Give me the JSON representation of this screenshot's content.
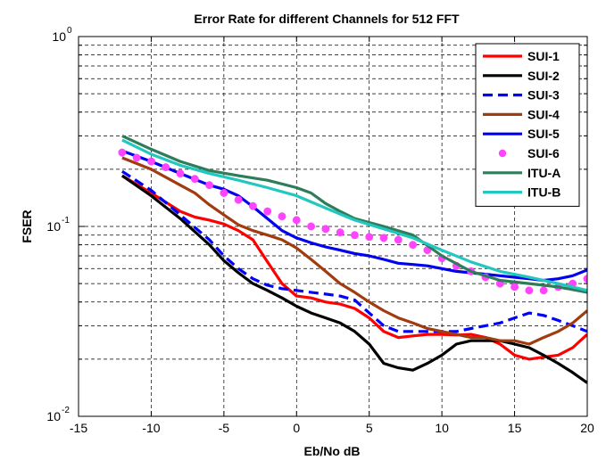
{
  "chart_data": {
    "type": "line",
    "title": "Error Rate for different Channels for 512 FFT",
    "xlabel": "Eb/No dB",
    "ylabel": "FSER",
    "xlim": [
      -15,
      20
    ],
    "ylim": [
      0.01,
      1
    ],
    "yscale": "log",
    "grid": true,
    "legend_position": "top-right",
    "x_ticks": [
      -15,
      -10,
      -5,
      0,
      5,
      10,
      15,
      20
    ],
    "x_tick_labels": [
      "-15",
      "-10",
      "-5",
      "0",
      "5",
      "10",
      "15",
      "20"
    ],
    "y_ticks": [
      {
        "value": 0.01,
        "base": "10",
        "exp": "-2"
      },
      {
        "value": 0.1,
        "base": "10",
        "exp": "-1"
      },
      {
        "value": 1,
        "base": "10",
        "exp": "0"
      }
    ],
    "series": [
      {
        "name": "SUI-1",
        "color": "#ff0000",
        "style": "solid",
        "x": [
          -12,
          -10,
          -8,
          -7,
          -6,
          -5,
          -4,
          -3,
          -2,
          -1,
          0,
          1,
          2,
          3,
          4,
          5,
          6,
          7,
          8,
          9,
          10,
          11,
          12,
          13,
          14,
          15,
          16,
          17,
          18,
          19,
          20
        ],
        "y": [
          0.185,
          0.15,
          0.12,
          0.112,
          0.108,
          0.103,
          0.095,
          0.085,
          0.065,
          0.05,
          0.043,
          0.042,
          0.04,
          0.039,
          0.037,
          0.033,
          0.028,
          0.026,
          0.0265,
          0.027,
          0.027,
          0.0268,
          0.027,
          0.026,
          0.024,
          0.021,
          0.02,
          0.0205,
          0.021,
          0.023,
          0.027
        ]
      },
      {
        "name": "SUI-2",
        "color": "#000000",
        "style": "solid",
        "x": [
          -12,
          -10,
          -8,
          -6,
          -5,
          -4,
          -3,
          -2,
          -1,
          0,
          1,
          2,
          3,
          4,
          5,
          6,
          7,
          8,
          9,
          10,
          11,
          12,
          13,
          14,
          15,
          16,
          17,
          18,
          19,
          20
        ],
        "y": [
          0.185,
          0.145,
          0.11,
          0.08,
          0.066,
          0.057,
          0.05,
          0.046,
          0.042,
          0.038,
          0.035,
          0.033,
          0.031,
          0.028,
          0.024,
          0.019,
          0.018,
          0.0175,
          0.019,
          0.021,
          0.024,
          0.025,
          0.025,
          0.025,
          0.024,
          0.023,
          0.021,
          0.019,
          0.017,
          0.015
        ]
      },
      {
        "name": "SUI-3",
        "color": "#0000ff",
        "style": "dashed",
        "x": [
          -12,
          -10,
          -8,
          -6,
          -5,
          -4,
          -3,
          -2,
          -1,
          0,
          1,
          2,
          3,
          4,
          5,
          6,
          7,
          8,
          9,
          10,
          11,
          12,
          13,
          14,
          15,
          16,
          17,
          18,
          19,
          20
        ],
        "y": [
          0.195,
          0.155,
          0.115,
          0.085,
          0.07,
          0.06,
          0.053,
          0.049,
          0.047,
          0.046,
          0.045,
          0.044,
          0.043,
          0.041,
          0.035,
          0.03,
          0.028,
          0.028,
          0.028,
          0.028,
          0.028,
          0.029,
          0.03,
          0.031,
          0.033,
          0.035,
          0.034,
          0.032,
          0.03,
          0.028
        ]
      },
      {
        "name": "SUI-4",
        "color": "#a03c10",
        "style": "solid",
        "x": [
          -12,
          -10,
          -8,
          -7,
          -6,
          -5,
          -4,
          -3,
          -2,
          -1,
          0,
          1,
          2,
          3,
          4,
          5,
          6,
          7,
          8,
          9,
          10,
          11,
          12,
          13,
          14,
          15,
          16,
          17,
          18,
          19,
          20
        ],
        "y": [
          0.23,
          0.2,
          0.165,
          0.15,
          0.13,
          0.115,
          0.102,
          0.095,
          0.09,
          0.085,
          0.077,
          0.067,
          0.058,
          0.05,
          0.045,
          0.04,
          0.036,
          0.033,
          0.031,
          0.029,
          0.028,
          0.027,
          0.026,
          0.026,
          0.025,
          0.025,
          0.024,
          0.026,
          0.028,
          0.031,
          0.036
        ]
      },
      {
        "name": "SUI-5",
        "color": "#0000ee",
        "style": "solid",
        "x": [
          -12,
          -10,
          -8,
          -6,
          -5,
          -4,
          -3,
          -2,
          -1,
          0,
          1,
          2,
          3,
          4,
          5,
          6,
          7,
          8,
          9,
          10,
          11,
          12,
          13,
          14,
          15,
          16,
          17,
          18,
          19,
          20
        ],
        "y": [
          0.25,
          0.22,
          0.19,
          0.165,
          0.157,
          0.145,
          0.127,
          0.11,
          0.095,
          0.087,
          0.082,
          0.078,
          0.075,
          0.072,
          0.07,
          0.067,
          0.064,
          0.063,
          0.062,
          0.06,
          0.058,
          0.057,
          0.056,
          0.055,
          0.054,
          0.053,
          0.052,
          0.053,
          0.055,
          0.059
        ]
      },
      {
        "name": "SUI-6",
        "color": "#ff44ff",
        "style": "markers",
        "x": [
          -12,
          -11,
          -10,
          -9,
          -8,
          -7,
          -6,
          -5,
          -4,
          -3,
          -2,
          -1,
          0,
          1,
          2,
          3,
          4,
          5,
          6,
          7,
          8,
          9,
          10,
          11,
          12,
          13,
          14,
          15,
          16,
          17,
          18,
          19,
          20
        ],
        "y": [
          0.245,
          0.23,
          0.22,
          0.205,
          0.19,
          0.178,
          0.165,
          0.15,
          0.138,
          0.128,
          0.12,
          0.113,
          0.108,
          0.1,
          0.097,
          0.093,
          0.09,
          0.088,
          0.087,
          0.085,
          0.08,
          0.075,
          0.068,
          0.062,
          0.058,
          0.054,
          0.05,
          0.048,
          0.046,
          0.046,
          0.048,
          0.05,
          0.053
        ]
      },
      {
        "name": "ITU-A",
        "color": "#2e7d5a",
        "style": "solid",
        "x": [
          -12,
          -10,
          -8,
          -6,
          -4,
          -2,
          0,
          1,
          2,
          3,
          4,
          6,
          8,
          10,
          12,
          14,
          16,
          18,
          20
        ],
        "y": [
          0.3,
          0.255,
          0.22,
          0.197,
          0.185,
          0.175,
          0.16,
          0.15,
          0.132,
          0.12,
          0.11,
          0.1,
          0.09,
          0.07,
          0.058,
          0.052,
          0.05,
          0.048,
          0.045
        ]
      },
      {
        "name": "ITU-B",
        "color": "#22c8c0",
        "style": "solid",
        "x": [
          -12,
          -10,
          -8,
          -6,
          -4,
          -2,
          0,
          2,
          4,
          6,
          8,
          10,
          12,
          14,
          16,
          18,
          20
        ],
        "y": [
          0.285,
          0.24,
          0.21,
          0.19,
          0.175,
          0.16,
          0.145,
          0.125,
          0.108,
          0.097,
          0.087,
          0.075,
          0.065,
          0.058,
          0.054,
          0.05,
          0.046
        ]
      }
    ]
  }
}
